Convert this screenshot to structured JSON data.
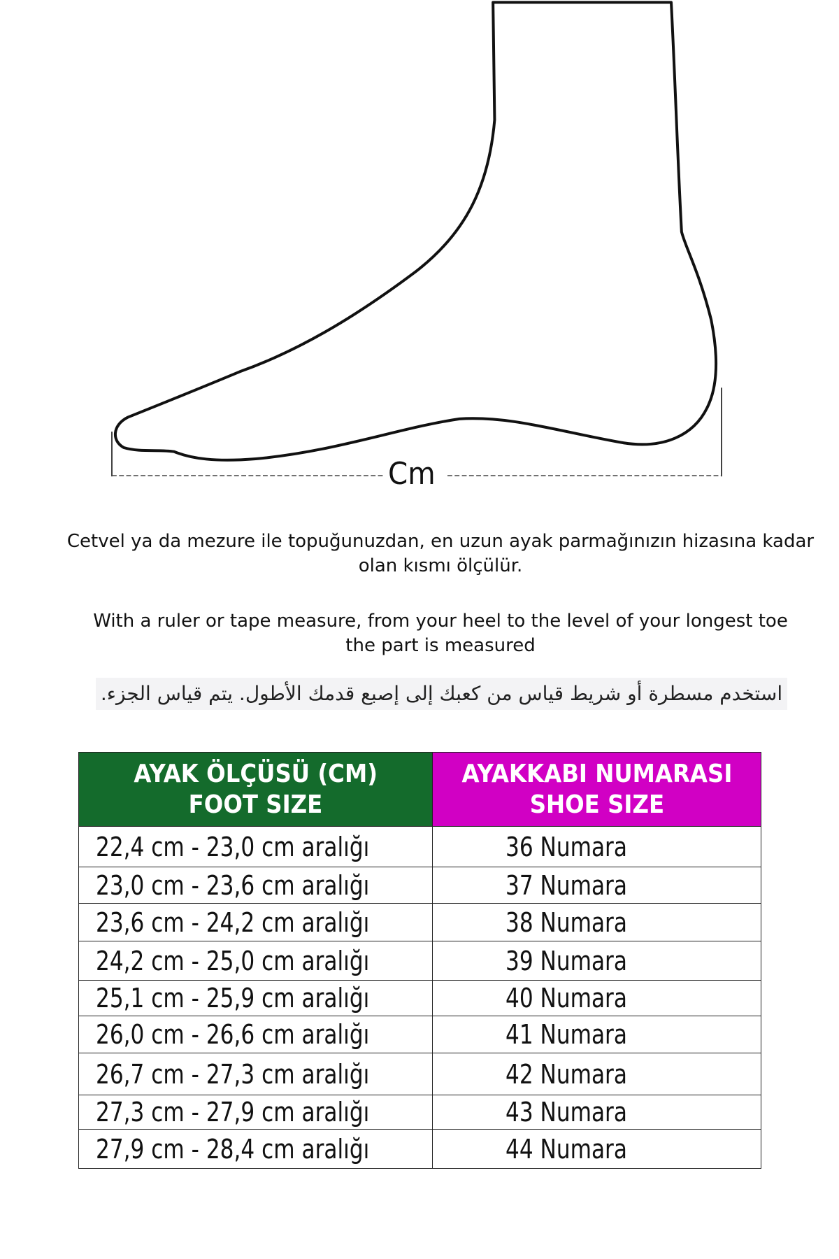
{
  "diagram": {
    "measure_label": "Cm"
  },
  "instructions": {
    "turkish": [
      "Cetvel ya da mezure ile topuğunuzdan, en uzun ayak parmağınızın hizasına kadar",
      "olan kısmı ölçülür."
    ],
    "english": [
      "With a ruler or tape measure, from your heel to the level of your longest toe",
      "the part is measured"
    ],
    "arabic": "استخدم مسطرة أو شريط قياس من كعبك إلى إصبع قدمك الأطول. يتم قياس الجزء."
  },
  "table": {
    "headers": [
      {
        "line1": "AYAK ÖLÇÜSÜ (CM)",
        "line2": "FOOT SIZE",
        "color": "#146b2c"
      },
      {
        "line1": "AYAKKABI NUMARASI",
        "line2": "SHOE SIZE",
        "color": "#d100c4"
      }
    ],
    "rows": [
      {
        "foot": "22,4 cm - 23,0 cm aralığı",
        "shoe": "36 Numara"
      },
      {
        "foot": "23,0 cm - 23,6 cm aralığı",
        "shoe": "37 Numara"
      },
      {
        "foot": "23,6 cm - 24,2 cm aralığı",
        "shoe": "38 Numara"
      },
      {
        "foot": "24,2 cm - 25,0 cm aralığı",
        "shoe": "39 Numara"
      },
      {
        "foot": "25,1 cm - 25,9 cm aralığı",
        "shoe": "40 Numara"
      },
      {
        "foot": "26,0 cm - 26,6 cm aralığı",
        "shoe": "41 Numara"
      },
      {
        "foot": "26,7 cm - 27,3 cm aralığı",
        "shoe": "42 Numara"
      },
      {
        "foot": "27,3 cm - 27,9 cm aralığı",
        "shoe": "43 Numara"
      },
      {
        "foot": "27,9 cm - 28,4 cm aralığı",
        "shoe": "44 Numara"
      }
    ]
  }
}
